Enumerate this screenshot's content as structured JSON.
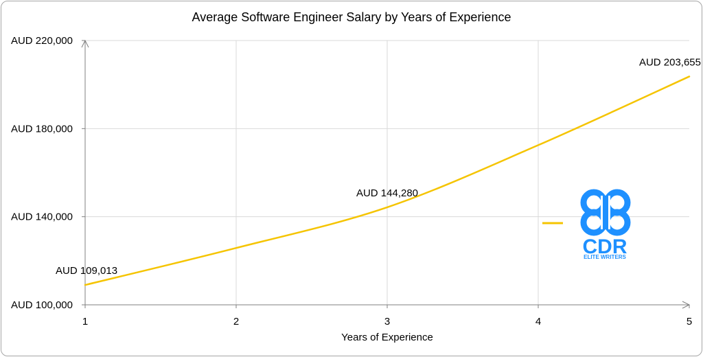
{
  "chart_data": {
    "type": "line",
    "title": "Average Software Engineer Salary by Years of Experience",
    "xlabel": "Years of Experience",
    "ylabel": "",
    "x": [
      1,
      2,
      3,
      4,
      5
    ],
    "x_tick_labels": [
      "1",
      "2",
      "3",
      "4",
      "5"
    ],
    "xlim": [
      1,
      5
    ],
    "ylim": [
      100000,
      220000
    ],
    "y_ticks": [
      100000,
      140000,
      180000,
      220000
    ],
    "y_tick_labels": [
      "AUD 100,000",
      "AUD 140,000",
      "AUD 180,000",
      "AUD 220,000"
    ],
    "grid": true,
    "series": [
      {
        "name": "",
        "color": "#F5C400",
        "smooth": true,
        "values": [
          109013,
          125800,
          144280,
          172500,
          203655
        ]
      }
    ],
    "data_labels": [
      {
        "index": 0,
        "text": "AUD 109,013"
      },
      {
        "index": 2,
        "text": "AUD 144,280"
      },
      {
        "index": 4,
        "text": "AUD 203,655"
      }
    ],
    "legend_placement": "right"
  },
  "watermark": {
    "text": "CDR",
    "subtext": "ELITE WRITERS",
    "color": "#1E90FF"
  }
}
